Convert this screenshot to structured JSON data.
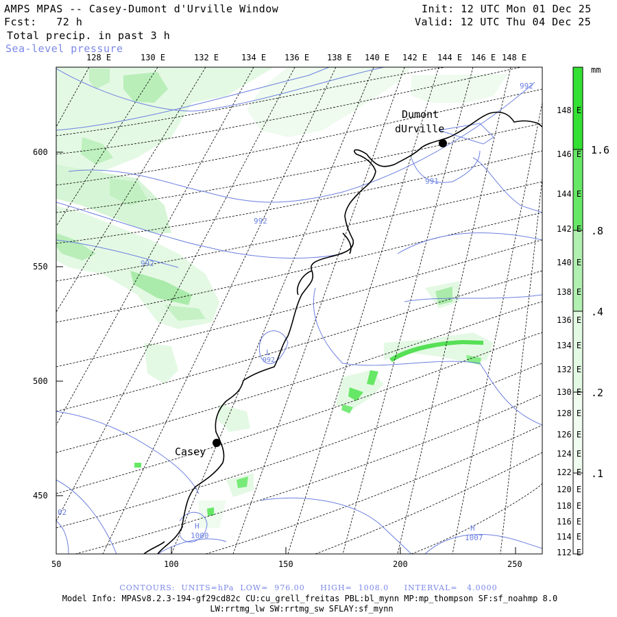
{
  "header": {
    "title": "AMPS MPAS -- Casey-Dumont d'Urville Window",
    "forecast": "Fcst:   72 h",
    "field": "Total precip. in past 3 h",
    "overlay": "Sea-level pressure",
    "init": "Init: 12 UTC Mon 01 Dec 25",
    "valid": "Valid: 12 UTC Thu 04 Dec 25"
  },
  "map": {
    "x_ticks": [
      "50",
      "100",
      "150",
      "200",
      "250"
    ],
    "y_ticks": [
      "600",
      "550",
      "500",
      "450"
    ],
    "top_longitudes": [
      "128 E",
      "130 E",
      "132 E",
      "134 E",
      "136 E",
      "138 E",
      "140 E",
      "142 E",
      "144 E",
      "146 E",
      "148 E"
    ],
    "right_longitudes": [
      "148 E",
      "146 E",
      "144 E",
      "142 E",
      "140 E",
      "138 E",
      "136 E",
      "134 E",
      "132 E",
      "130 E",
      "128 E",
      "126 E",
      "124 E",
      "122 E",
      "120 E",
      "118 E",
      "116 E",
      "114 E",
      "112 E"
    ],
    "stations": [
      {
        "name_line1": "Dumont",
        "name_line2": "dUrville"
      },
      {
        "name_line1": "Casey",
        "name_line2": ""
      }
    ],
    "contour_labels": [
      "992",
      "992",
      "992",
      "991",
      "L",
      "992",
      "H",
      "1000",
      "H",
      "1007",
      "02"
    ],
    "colors": {
      "precip_light": "#d9f7d9",
      "precip_mid": "#b4edb4",
      "precip_strong": "#66e866",
      "precip_max": "#2ee22e",
      "contour": "#6b7fe0",
      "coast": "#000000"
    }
  },
  "colorbar": {
    "unit": "mm",
    "labels": [
      ".1",
      ".2",
      ".4",
      ".8",
      "1.6"
    ],
    "levels": [
      0.1,
      0.2,
      0.4,
      0.8,
      1.6
    ]
  },
  "footer": {
    "contours": "CONTOURS:  UNITS=hPa  LOW=  976.00     HIGH=  1008.0     INTERVAL=   4.0000",
    "model_info": "Model Info: MPASv8.2.3-194-gf29cd82c CU:cu_grell_freitas PBL:bl_mynn MP:mp_thompson SF:sf_noahmp 8.0",
    "model_info2": "LW:rrtmg_lw SW:rrtmg_sw SFLAY:sf_mynn"
  }
}
